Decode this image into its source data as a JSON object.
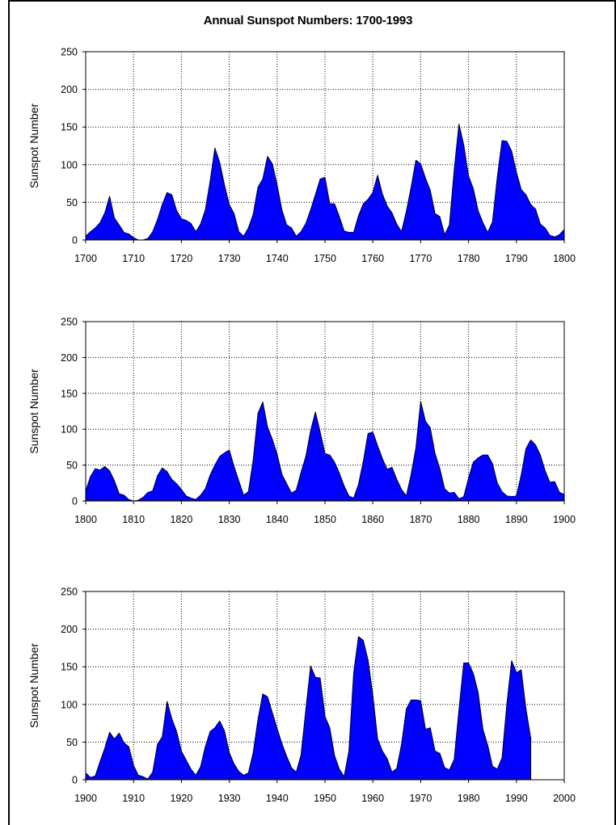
{
  "title": "Annual Sunspot Numbers:  1700-1993",
  "colors": {
    "fill": "#0000ff",
    "stroke": "#000000",
    "grid": "#000000"
  },
  "chart_data": [
    {
      "type": "area",
      "ylabel": "Sunspot Number",
      "xlim": [
        1700,
        1800
      ],
      "ylim": [
        0,
        250
      ],
      "grid": true,
      "xticks": [
        "1700",
        "1710",
        "1720",
        "1730",
        "1740",
        "1750",
        "1760",
        "1770",
        "1780",
        "1790",
        "1800"
      ],
      "yticks": [
        "0",
        "50",
        "100",
        "150",
        "200",
        "250"
      ],
      "x": [
        1700,
        1701,
        1702,
        1703,
        1704,
        1705,
        1706,
        1707,
        1708,
        1709,
        1710,
        1711,
        1712,
        1713,
        1714,
        1715,
        1716,
        1717,
        1718,
        1719,
        1720,
        1721,
        1722,
        1723,
        1724,
        1725,
        1726,
        1727,
        1728,
        1729,
        1730,
        1731,
        1732,
        1733,
        1734,
        1735,
        1736,
        1737,
        1738,
        1739,
        1740,
        1741,
        1742,
        1743,
        1744,
        1745,
        1746,
        1747,
        1748,
        1749,
        1750,
        1751,
        1752,
        1753,
        1754,
        1755,
        1756,
        1757,
        1758,
        1759,
        1760,
        1761,
        1762,
        1763,
        1764,
        1765,
        1766,
        1767,
        1768,
        1769,
        1770,
        1771,
        1772,
        1773,
        1774,
        1775,
        1776,
        1777,
        1778,
        1779,
        1780,
        1781,
        1782,
        1783,
        1784,
        1785,
        1786,
        1787,
        1788,
        1789,
        1790,
        1791,
        1792,
        1793,
        1794,
        1795,
        1796,
        1797,
        1798,
        1799,
        1800
      ],
      "values": [
        5,
        11,
        16,
        23,
        36,
        58,
        29,
        20,
        10,
        8,
        3,
        0,
        0,
        2,
        11,
        27,
        47,
        63,
        60,
        39,
        28,
        26,
        22,
        11,
        21,
        40,
        78,
        122,
        103,
        73,
        47,
        35,
        11,
        5,
        16,
        34,
        70,
        81,
        111,
        101,
        73,
        40,
        20,
        16,
        5,
        11,
        22,
        40,
        60,
        81,
        83,
        48,
        48,
        31,
        12,
        10,
        10,
        32,
        48,
        54,
        63,
        86,
        61,
        45,
        36,
        21,
        11,
        38,
        70,
        106,
        101,
        82,
        66,
        35,
        31,
        7,
        20,
        93,
        154,
        126,
        85,
        68,
        39,
        23,
        10,
        24,
        83,
        132,
        131,
        118,
        90,
        67,
        60,
        47,
        41,
        21,
        16,
        6,
        4,
        7,
        14
      ]
    },
    {
      "type": "area",
      "ylabel": "Sunspot Number",
      "xlim": [
        1800,
        1900
      ],
      "ylim": [
        0,
        250
      ],
      "grid": true,
      "xticks": [
        "1800",
        "1810",
        "1820",
        "1830",
        "1840",
        "1850",
        "1860",
        "1870",
        "1880",
        "1890",
        "1900"
      ],
      "yticks": [
        "0",
        "50",
        "100",
        "150",
        "200",
        "250"
      ],
      "x": [
        1800,
        1801,
        1802,
        1803,
        1804,
        1805,
        1806,
        1807,
        1808,
        1809,
        1810,
        1811,
        1812,
        1813,
        1814,
        1815,
        1816,
        1817,
        1818,
        1819,
        1820,
        1821,
        1822,
        1823,
        1824,
        1825,
        1826,
        1827,
        1828,
        1829,
        1830,
        1831,
        1832,
        1833,
        1834,
        1835,
        1836,
        1837,
        1838,
        1839,
        1840,
        1841,
        1842,
        1843,
        1844,
        1845,
        1846,
        1847,
        1848,
        1849,
        1850,
        1851,
        1852,
        1853,
        1854,
        1855,
        1856,
        1857,
        1858,
        1859,
        1860,
        1861,
        1862,
        1863,
        1864,
        1865,
        1866,
        1867,
        1868,
        1869,
        1870,
        1871,
        1872,
        1873,
        1874,
        1875,
        1876,
        1877,
        1878,
        1879,
        1880,
        1881,
        1882,
        1883,
        1884,
        1885,
        1886,
        1887,
        1888,
        1889,
        1890,
        1891,
        1892,
        1893,
        1894,
        1895,
        1896,
        1897,
        1898,
        1899,
        1900
      ],
      "values": [
        14,
        34,
        45,
        43,
        48,
        42,
        28,
        10,
        8,
        2,
        0,
        1,
        5,
        12,
        14,
        35,
        46,
        41,
        30,
        24,
        16,
        7,
        4,
        2,
        8,
        17,
        36,
        50,
        62,
        67,
        71,
        48,
        28,
        8,
        13,
        57,
        122,
        138,
        103,
        86,
        65,
        37,
        24,
        11,
        15,
        40,
        62,
        98,
        124,
        96,
        66,
        64,
        54,
        39,
        21,
        7,
        4,
        23,
        55,
        94,
        96,
        77,
        59,
        44,
        47,
        30,
        16,
        7,
        37,
        74,
        139,
        111,
        102,
        66,
        45,
        17,
        11,
        12,
        3,
        6,
        32,
        54,
        60,
        64,
        64,
        52,
        25,
        13,
        7,
        6,
        7,
        36,
        73,
        85,
        78,
        64,
        42,
        26,
        27,
        12,
        9
      ]
    },
    {
      "type": "area",
      "ylabel": "Sunspot Number",
      "xlim": [
        1900,
        2000
      ],
      "ylim": [
        0,
        250
      ],
      "grid": true,
      "xticks": [
        "1900",
        "1910",
        "1920",
        "1930",
        "1940",
        "1950",
        "1960",
        "1970",
        "1980",
        "1990",
        "2000"
      ],
      "yticks": [
        "0",
        "50",
        "100",
        "150",
        "200",
        "250"
      ],
      "x": [
        1900,
        1901,
        1902,
        1903,
        1904,
        1905,
        1906,
        1907,
        1908,
        1909,
        1910,
        1911,
        1912,
        1913,
        1914,
        1915,
        1916,
        1917,
        1918,
        1919,
        1920,
        1921,
        1922,
        1923,
        1924,
        1925,
        1926,
        1927,
        1928,
        1929,
        1930,
        1931,
        1932,
        1933,
        1934,
        1935,
        1936,
        1937,
        1938,
        1939,
        1940,
        1941,
        1942,
        1943,
        1944,
        1945,
        1946,
        1947,
        1948,
        1949,
        1950,
        1951,
        1952,
        1953,
        1954,
        1955,
        1956,
        1957,
        1958,
        1959,
        1960,
        1961,
        1962,
        1963,
        1964,
        1965,
        1966,
        1967,
        1968,
        1969,
        1970,
        1971,
        1972,
        1973,
        1974,
        1975,
        1976,
        1977,
        1978,
        1979,
        1980,
        1981,
        1982,
        1983,
        1984,
        1985,
        1986,
        1987,
        1988,
        1989,
        1990,
        1991,
        1992,
        1993
      ],
      "values": [
        9,
        3,
        5,
        24,
        42,
        63,
        54,
        62,
        49,
        44,
        19,
        6,
        4,
        1,
        10,
        47,
        57,
        104,
        81,
        64,
        38,
        26,
        14,
        6,
        17,
        44,
        64,
        69,
        78,
        65,
        36,
        21,
        11,
        6,
        9,
        36,
        80,
        114,
        110,
        89,
        68,
        48,
        31,
        16,
        10,
        33,
        93,
        151,
        136,
        135,
        84,
        69,
        32,
        14,
        4,
        38,
        142,
        190,
        185,
        159,
        112,
        54,
        38,
        28,
        10,
        15,
        47,
        94,
        106,
        106,
        105,
        67,
        69,
        38,
        35,
        16,
        13,
        27,
        93,
        155,
        155,
        141,
        116,
        67,
        46,
        18,
        14,
        29,
        100,
        158,
        142,
        146,
        94,
        55
      ]
    }
  ]
}
